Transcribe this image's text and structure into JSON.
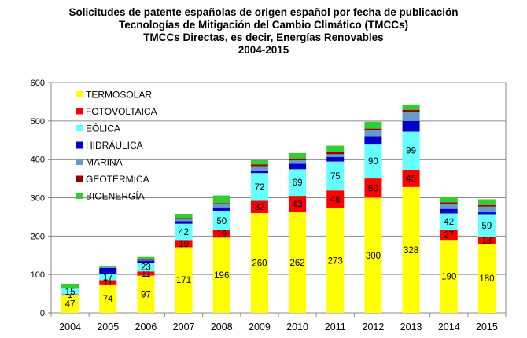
{
  "chart_data": {
    "type": "bar",
    "stacked": true,
    "title_lines": [
      "Solicitudes de patente españolas de origen español por fecha de publicación",
      "Tecnologías de Mitigación del Cambio Climático (TMCCs)",
      "TMCCs Directas, es decir, Energías Renovables",
      "2004-2015"
    ],
    "categories": [
      "2004",
      "2005",
      "2006",
      "2007",
      "2008",
      "2009",
      "2010",
      "2011",
      "2012",
      "2013",
      "2014",
      "2015"
    ],
    "ylim": [
      0,
      600
    ],
    "yticks": [
      0,
      100,
      200,
      300,
      400,
      500,
      600
    ],
    "grid": true,
    "legend_position": "top-left",
    "series": [
      {
        "name": "TERMOSOLAR",
        "color": "#ffff00",
        "values": [
          47,
          74,
          97,
          171,
          196,
          260,
          262,
          273,
          300,
          328,
          190,
          180
        ],
        "labels": [
          "47",
          "74",
          "97",
          "171",
          "196",
          "260",
          "262",
          "273",
          "300",
          "328",
          "190",
          "180"
        ]
      },
      {
        "name": "FOTOVOLTAICA",
        "color": "#ff0000",
        "values": [
          1,
          11,
          11,
          19,
          19,
          32,
          43,
          46,
          50,
          45,
          27,
          18
        ],
        "labels": [
          "1",
          "11",
          "11",
          "19",
          "19",
          "32",
          "43",
          "46",
          "50",
          "45",
          "27",
          "18"
        ]
      },
      {
        "name": "EÓLICA",
        "color": "#66ffff",
        "values": [
          15,
          17,
          23,
          42,
          50,
          72,
          69,
          75,
          90,
          99,
          42,
          59
        ],
        "labels": [
          "15",
          "17",
          "23",
          "42",
          "50",
          "72",
          "69",
          "75",
          "90",
          "99",
          "42",
          "59"
        ]
      },
      {
        "name": "HIDRÁULICA",
        "color": "#0000cc",
        "values": [
          0,
          15,
          5,
          7,
          10,
          6,
          14,
          12,
          20,
          28,
          12,
          5
        ],
        "labels": null
      },
      {
        "name": "MARINA",
        "color": "#6699cc",
        "values": [
          0,
          2,
          2,
          5,
          8,
          12,
          9,
          7,
          16,
          24,
          12,
          15
        ],
        "labels": null
      },
      {
        "name": "GEOTÉRMICA",
        "color": "#990000",
        "values": [
          0,
          0,
          2,
          3,
          3,
          4,
          5,
          5,
          4,
          5,
          5,
          4
        ],
        "labels": null
      },
      {
        "name": "BIOENERGÍA",
        "color": "#33cc33",
        "values": [
          13,
          4,
          6,
          11,
          20,
          13,
          14,
          17,
          18,
          14,
          14,
          15
        ],
        "labels": null
      }
    ]
  }
}
